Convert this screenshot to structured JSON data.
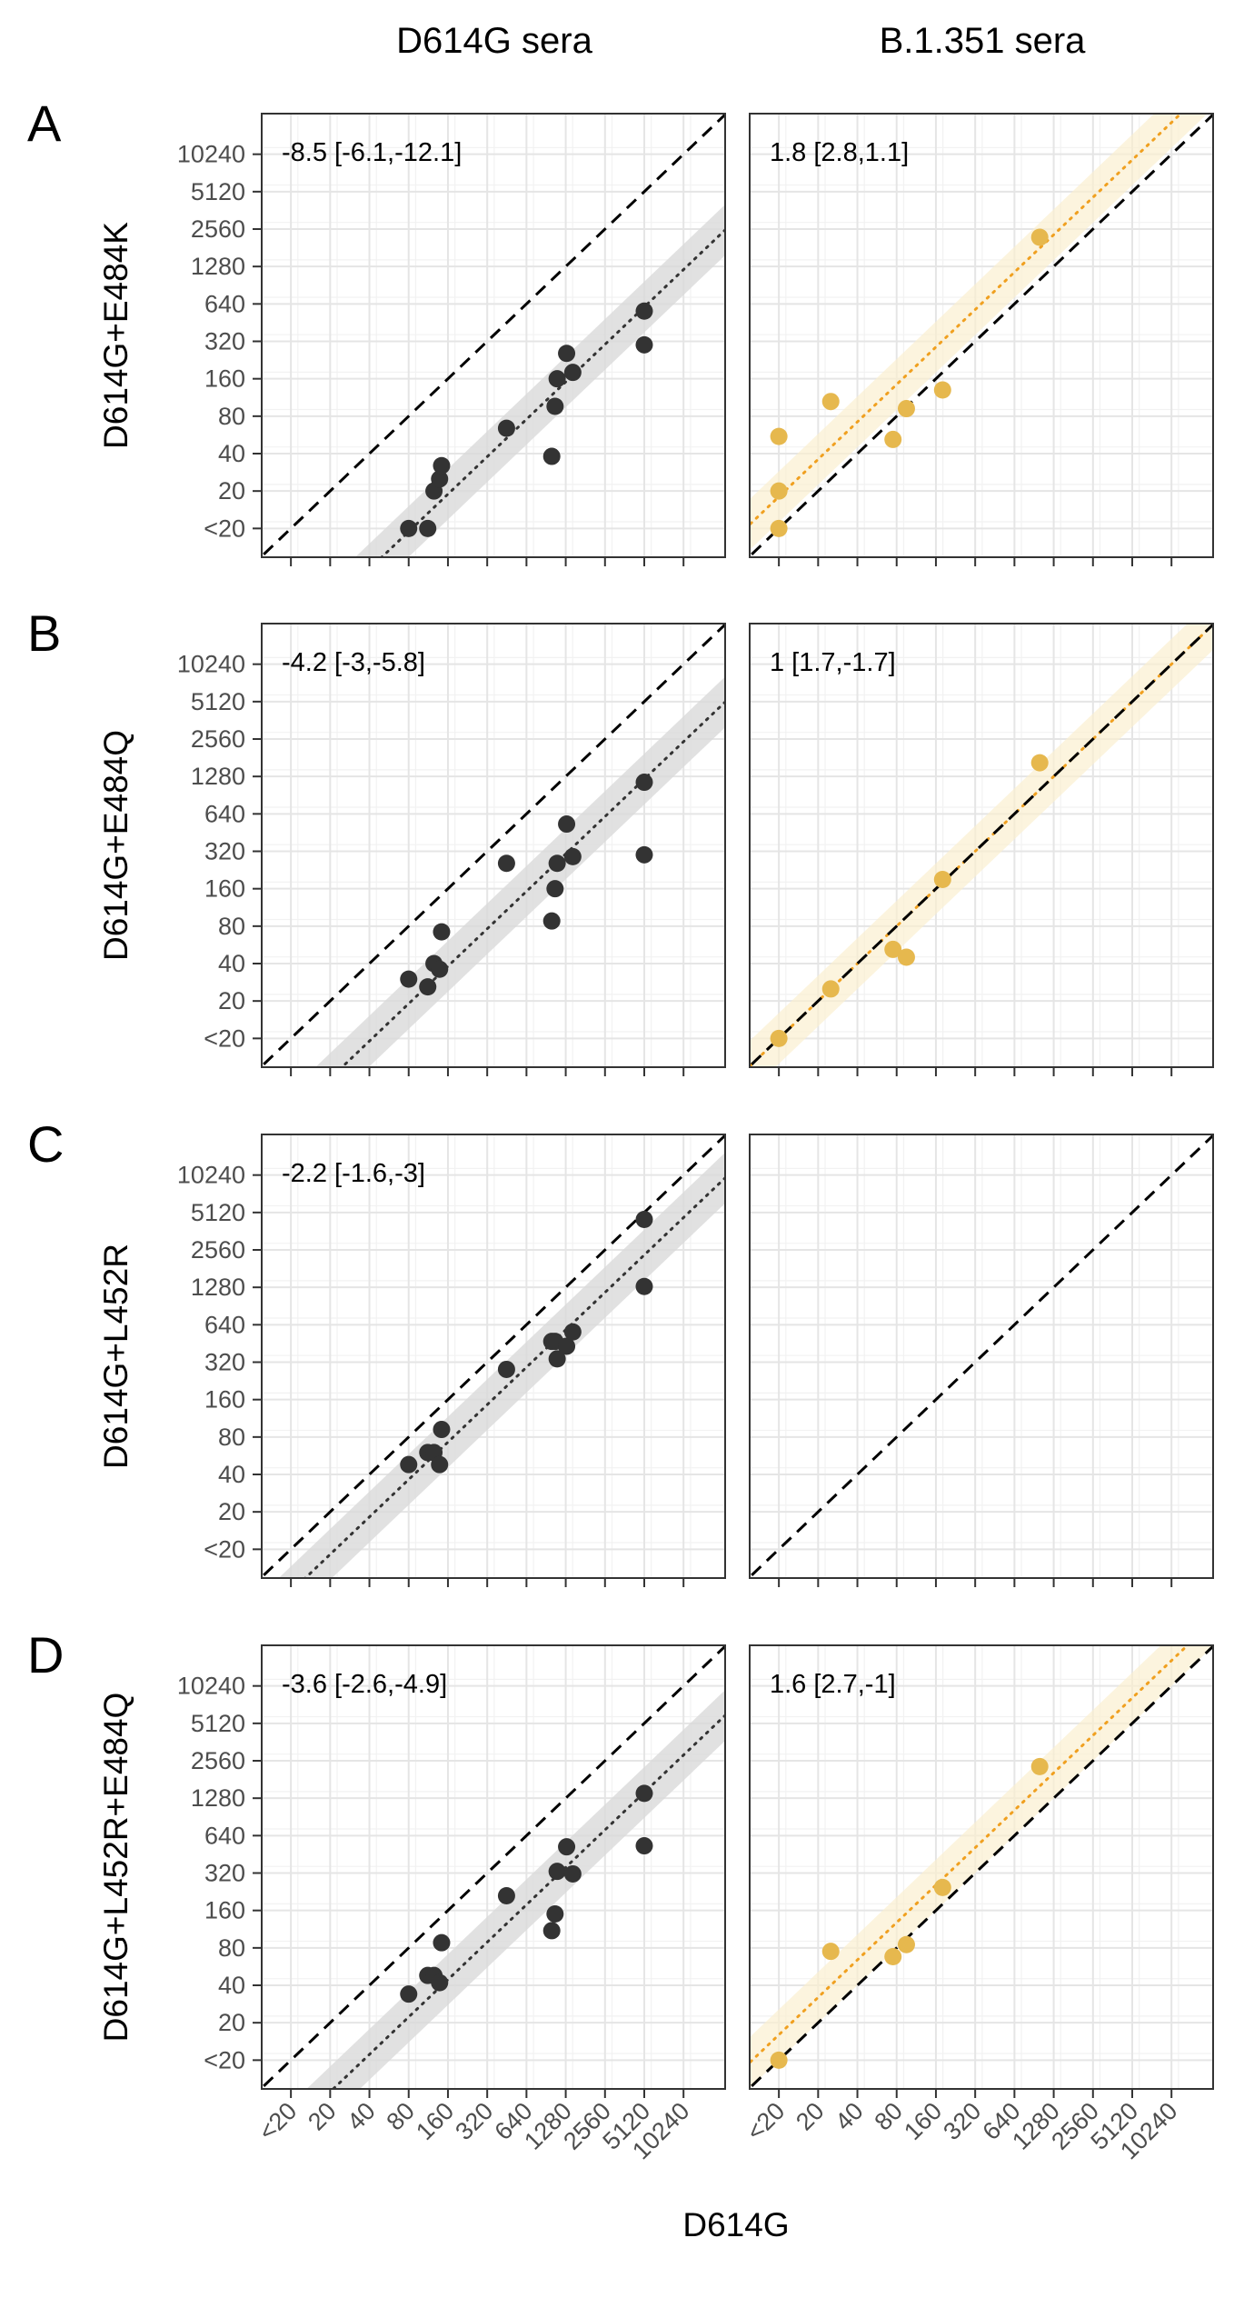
{
  "chart_data": {
    "type": "scatter",
    "xlabel": "D614G",
    "columns": [
      "D614G sera",
      "B.1.351 sera"
    ],
    "tick_labels": [
      "<20",
      "20",
      "40",
      "80",
      "160",
      "320",
      "640",
      "1280",
      "2560",
      "5120",
      "10240"
    ],
    "x_tick_values": [
      10,
      20,
      40,
      80,
      160,
      320,
      640,
      1280,
      2560,
      5120,
      10240
    ],
    "y_tick_values": [
      10,
      20,
      40,
      80,
      160,
      320,
      640,
      1280,
      2560,
      5120,
      10240
    ],
    "x_range": [
      8.5,
      15000
    ],
    "y_range": [
      8.5,
      15000
    ],
    "scale": "log2",
    "grid": true,
    "colors": {
      "d614g_sera": "#333333",
      "b1351_sera": "#E6B84E",
      "b1351_line": "#F0A020",
      "ribbon_gray": "#D9D9D9",
      "ribbon_yellow": "#FBEFD0"
    },
    "rows": [
      {
        "letter": "A",
        "ylabel": "D614G+E484K",
        "panels": [
          {
            "annotation": "-8.5 [-6.1,-12.1]",
            "fit_fold": 0.118,
            "points": [
              [
                80,
                10
              ],
              [
                112,
                10
              ],
              [
                125,
                20
              ],
              [
                138,
                25
              ],
              [
                143,
                32
              ],
              [
                450,
                64
              ],
              [
                1000,
                38
              ],
              [
                1060,
                96
              ],
              [
                1100,
                160
              ],
              [
                1300,
                256
              ],
              [
                1450,
                180
              ],
              [
                5120,
                300
              ],
              [
                5120,
                560
              ]
            ]
          },
          {
            "annotation": "1.8 [2.8,1.1]",
            "fit_fold": 1.8,
            "points": [
              [
                10,
                10
              ],
              [
                10,
                20
              ],
              [
                10,
                55
              ],
              [
                25,
                105
              ],
              [
                75,
                52
              ],
              [
                95,
                92
              ],
              [
                180,
                130
              ],
              [
                1000,
                2200
              ]
            ]
          }
        ]
      },
      {
        "letter": "B",
        "ylabel": "D614G+E484Q",
        "panels": [
          {
            "annotation": "-4.2 [-3,-5.8]",
            "fit_fold": 0.238,
            "points": [
              [
                80,
                30
              ],
              [
                112,
                26
              ],
              [
                125,
                40
              ],
              [
                138,
                36
              ],
              [
                143,
                72
              ],
              [
                450,
                256
              ],
              [
                1000,
                88
              ],
              [
                1060,
                160
              ],
              [
                1100,
                256
              ],
              [
                1300,
                530
              ],
              [
                1450,
                290
              ],
              [
                5120,
                300
              ],
              [
                5120,
                1150
              ]
            ]
          },
          {
            "annotation": "1 [1.7,-1.7]",
            "fit_fold": 1.0,
            "points": [
              [
                10,
                10
              ],
              [
                25,
                25
              ],
              [
                75,
                52
              ],
              [
                95,
                45
              ],
              [
                180,
                190
              ],
              [
                1000,
                1650
              ]
            ]
          }
        ]
      },
      {
        "letter": "C",
        "ylabel": "D614G+L452R",
        "panels": [
          {
            "annotation": "-2.2 [-1.6,-3]",
            "fit_fold": 0.455,
            "points": [
              [
                80,
                48
              ],
              [
                112,
                60
              ],
              [
                125,
                60
              ],
              [
                138,
                48
              ],
              [
                143,
                92
              ],
              [
                450,
                280
              ],
              [
                1000,
                470
              ],
              [
                1060,
                470
              ],
              [
                1100,
                340
              ],
              [
                1300,
                430
              ],
              [
                1450,
                560
              ],
              [
                5120,
                1300
              ],
              [
                5120,
                4500
              ]
            ]
          },
          {
            "annotation": "",
            "fit_fold": null,
            "points": []
          }
        ]
      },
      {
        "letter": "D",
        "ylabel": "D614G+L452R+E484Q",
        "panels": [
          {
            "annotation": "-3.6 [-2.6,-4.9]",
            "fit_fold": 0.278,
            "points": [
              [
                80,
                34
              ],
              [
                112,
                48
              ],
              [
                125,
                48
              ],
              [
                138,
                42
              ],
              [
                143,
                88
              ],
              [
                450,
                210
              ],
              [
                1000,
                110
              ],
              [
                1060,
                150
              ],
              [
                1100,
                330
              ],
              [
                1300,
                520
              ],
              [
                1450,
                315
              ],
              [
                5120,
                530
              ],
              [
                5120,
                1400
              ]
            ]
          },
          {
            "annotation": "1.6 [2.7,-1]",
            "fit_fold": 1.6,
            "points": [
              [
                10,
                10
              ],
              [
                25,
                75
              ],
              [
                75,
                68
              ],
              [
                95,
                85
              ],
              [
                180,
                245
              ],
              [
                1000,
                2300
              ]
            ]
          }
        ]
      }
    ]
  }
}
